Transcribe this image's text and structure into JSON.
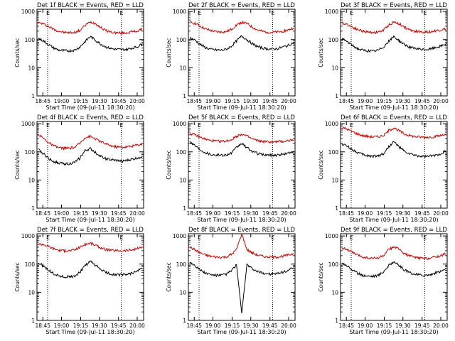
{
  "chart_data": [
    {
      "type": "line",
      "title": "Det 1f BLACK = Events, RED = LLD",
      "xlabel": "Start Time (09-Jul-11 18:30:20)",
      "ylabel": "Counts/sec",
      "xticks": [
        "18:45",
        "19:00",
        "19:15",
        "19:30",
        "19:45",
        "20:00"
      ],
      "yticks": [
        "1",
        "10",
        "100",
        "1000"
      ],
      "ylim": [
        1,
        1200
      ],
      "yscale": "log",
      "marker": "E",
      "series": [
        {
          "name": "LLD",
          "color": "#d00000",
          "values": [
            400,
            360,
            290,
            230,
            200,
            180,
            175,
            180,
            210,
            320,
            420,
            380,
            270,
            210,
            185,
            175,
            170,
            175,
            190,
            200,
            230
          ]
        },
        {
          "name": "Events",
          "color": "#000000",
          "values": [
            110,
            90,
            65,
            50,
            42,
            40,
            40,
            42,
            55,
            85,
            130,
            95,
            70,
            55,
            48,
            45,
            44,
            45,
            50,
            55,
            70
          ]
        }
      ]
    },
    {
      "type": "line",
      "title": "Det 2f BLACK = Events, RED = LLD",
      "xlabel": "Start Time (09-Jul-11 18:30:20)",
      "ylabel": "Counts/sec",
      "xticks": [
        "18:45",
        "19:00",
        "19:15",
        "19:30",
        "19:45",
        "20:00"
      ],
      "yticks": [
        "1",
        "10",
        "100",
        "1000"
      ],
      "ylim": [
        1,
        1200
      ],
      "yscale": "log",
      "marker": "E",
      "series": [
        {
          "name": "LLD",
          "color": "#d00000",
          "values": [
            420,
            380,
            300,
            240,
            210,
            190,
            185,
            190,
            230,
            330,
            410,
            370,
            280,
            220,
            195,
            185,
            180,
            185,
            200,
            220,
            260
          ]
        },
        {
          "name": "Events",
          "color": "#000000",
          "values": [
            115,
            95,
            68,
            52,
            45,
            43,
            42,
            45,
            58,
            90,
            135,
            100,
            72,
            57,
            50,
            47,
            46,
            48,
            55,
            62,
            80
          ]
        }
      ]
    },
    {
      "type": "line",
      "title": "Det 3f BLACK = Events, RED = LLD",
      "xlabel": "Start Time (09-Jul-11 18:30:20)",
      "ylabel": "Counts/sec",
      "xticks": [
        "18:45",
        "19:00",
        "19:15",
        "19:30",
        "19:45",
        "20:00"
      ],
      "yticks": [
        "1",
        "10",
        "100",
        "1000"
      ],
      "ylim": [
        1,
        1200
      ],
      "yscale": "log",
      "marker": "E",
      "series": [
        {
          "name": "LLD",
          "color": "#d00000",
          "values": [
            390,
            350,
            280,
            230,
            200,
            185,
            180,
            185,
            215,
            330,
            420,
            370,
            280,
            220,
            200,
            190,
            185,
            190,
            205,
            220,
            240
          ]
        },
        {
          "name": "Events",
          "color": "#000000",
          "values": [
            105,
            85,
            62,
            48,
            42,
            40,
            39,
            42,
            55,
            85,
            130,
            92,
            68,
            54,
            48,
            45,
            44,
            46,
            52,
            58,
            70
          ]
        }
      ]
    },
    {
      "type": "line",
      "title": "Det 4f BLACK = Events, RED = LLD",
      "xlabel": "Start Time (09-Jul-11 18:30:20)",
      "ylabel": "Counts/sec",
      "xticks": [
        "18:45",
        "19:00",
        "19:15",
        "19:30",
        "19:45",
        "20:00"
      ],
      "yticks": [
        "1",
        "10",
        "100",
        "1000"
      ],
      "ylim": [
        1,
        1200
      ],
      "yscale": "log",
      "marker": "E",
      "series": [
        {
          "name": "LLD",
          "color": "#d00000",
          "values": [
            420,
            300,
            210,
            160,
            140,
            135,
            135,
            145,
            200,
            330,
            350,
            290,
            230,
            190,
            165,
            150,
            145,
            150,
            160,
            175,
            190
          ]
        },
        {
          "name": "Events",
          "color": "#000000",
          "values": [
            120,
            85,
            58,
            45,
            40,
            38,
            38,
            42,
            60,
            110,
            130,
            95,
            70,
            57,
            52,
            49,
            47,
            49,
            54,
            60,
            68
          ]
        }
      ]
    },
    {
      "type": "line",
      "title": "Det 5f BLACK = Events, RED = LLD",
      "xlabel": "Start Time (09-Jul-11 18:30:20)",
      "ylabel": "Counts/sec",
      "xticks": [
        "18:45",
        "19:00",
        "19:15",
        "19:30",
        "19:45",
        "20:00"
      ],
      "yticks": [
        "1",
        "10",
        "100",
        "1000"
      ],
      "ylim": [
        1,
        1200
      ],
      "yscale": "log",
      "marker": "E",
      "series": [
        {
          "name": "LLD",
          "color": "#d00000",
          "values": [
            450,
            400,
            330,
            280,
            250,
            240,
            235,
            240,
            270,
            360,
            430,
            360,
            290,
            250,
            235,
            228,
            225,
            228,
            235,
            250,
            270
          ]
        },
        {
          "name": "Events",
          "color": "#000000",
          "values": [
            230,
            170,
            120,
            95,
            82,
            78,
            76,
            78,
            90,
            140,
            200,
            140,
            105,
            88,
            80,
            77,
            76,
            78,
            82,
            90,
            105
          ]
        }
      ]
    },
    {
      "type": "line",
      "title": "Det 6f BLACK = Events, RED = LLD",
      "xlabel": "Start Time (09-Jul-11 18:30:20)",
      "ylabel": "Counts/sec",
      "xticks": [
        "18:45",
        "19:00",
        "19:15",
        "19:30",
        "19:45",
        "20:00"
      ],
      "yticks": [
        "1",
        "10",
        "100",
        "1000"
      ],
      "ylim": [
        1,
        1200
      ],
      "yscale": "log",
      "marker": "E",
      "series": [
        {
          "name": "LLD",
          "color": "#d00000",
          "values": [
            720,
            640,
            520,
            430,
            380,
            350,
            340,
            345,
            380,
            560,
            720,
            560,
            430,
            380,
            350,
            335,
            330,
            335,
            350,
            380,
            440
          ]
        },
        {
          "name": "Events",
          "color": "#000000",
          "values": [
            190,
            160,
            120,
            95,
            80,
            72,
            70,
            72,
            85,
            150,
            230,
            150,
            105,
            85,
            75,
            70,
            68,
            70,
            75,
            85,
            110
          ]
        }
      ]
    },
    {
      "type": "line",
      "title": "Det 7f BLACK = Events, RED = LLD",
      "xlabel": "Start Time (09-Jul-11 18:30:20)",
      "ylabel": "Counts/sec",
      "xticks": [
        "18:45",
        "19:00",
        "19:15",
        "19:30",
        "19:45",
        "20:00"
      ],
      "yticks": [
        "1",
        "10",
        "100",
        "1000"
      ],
      "ylim": [
        1,
        1200
      ],
      "yscale": "log",
      "marker": "E",
      "series": [
        {
          "name": "LLD",
          "color": "#d00000",
          "values": [
            520,
            500,
            420,
            350,
            310,
            300,
            300,
            320,
            400,
            500,
            560,
            470,
            380,
            330,
            310,
            300,
            300,
            305,
            320,
            350,
            400
          ]
        },
        {
          "name": "Events",
          "color": "#000000",
          "values": [
            110,
            85,
            60,
            45,
            38,
            35,
            35,
            38,
            52,
            88,
            125,
            90,
            65,
            50,
            44,
            42,
            41,
            43,
            48,
            55,
            72
          ]
        }
      ]
    },
    {
      "type": "line",
      "title": "Det 8f BLACK = Events, RED = LLD",
      "xlabel": "Start Time (09-Jul-11 18:30:20)",
      "ylabel": "Counts/sec",
      "xticks": [
        "18:45",
        "19:00",
        "19:15",
        "19:30",
        "19:45",
        "20:00"
      ],
      "yticks": [
        "1",
        "10",
        "100",
        "1000"
      ],
      "ylim": [
        1,
        1200
      ],
      "yscale": "log",
      "marker": "E",
      "series": [
        {
          "name": "LLD",
          "color": "#d00000",
          "values": [
            400,
            320,
            250,
            210,
            190,
            180,
            175,
            180,
            220,
            330,
            1200,
            330,
            250,
            210,
            190,
            180,
            175,
            180,
            195,
            210,
            240
          ]
        },
        {
          "name": "Events",
          "color": "#000000",
          "values": [
            120,
            90,
            62,
            48,
            42,
            40,
            40,
            44,
            58,
            95,
            1.8,
            95,
            68,
            54,
            48,
            45,
            44,
            46,
            52,
            60,
            75
          ]
        }
      ]
    },
    {
      "type": "line",
      "title": "Det 9f BLACK = Events, RED = LLD",
      "xlabel": "Start Time (09-Jul-11 18:30:20)",
      "ylabel": "Counts/sec",
      "xticks": [
        "18:45",
        "19:00",
        "19:15",
        "19:30",
        "19:45",
        "20:00"
      ],
      "yticks": [
        "1",
        "10",
        "100",
        "1000"
      ],
      "ylim": [
        1,
        1200
      ],
      "yscale": "log",
      "marker": "E",
      "series": [
        {
          "name": "LLD",
          "color": "#d00000",
          "values": [
            380,
            330,
            260,
            210,
            180,
            165,
            160,
            165,
            200,
            320,
            420,
            330,
            240,
            195,
            175,
            165,
            160,
            165,
            180,
            200,
            230
          ]
        },
        {
          "name": "Events",
          "color": "#000000",
          "values": [
            110,
            88,
            62,
            47,
            40,
            38,
            37,
            40,
            54,
            88,
            125,
            88,
            62,
            50,
            44,
            41,
            40,
            42,
            48,
            55,
            68
          ]
        }
      ]
    }
  ]
}
